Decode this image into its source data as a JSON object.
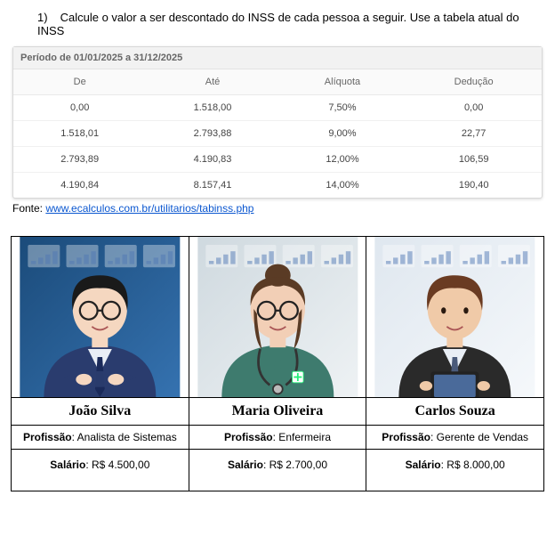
{
  "question": {
    "number": "1)",
    "text": "Calcule o valor a ser descontado do INSS de cada pessoa a seguir. Use a tabela atual do INSS"
  },
  "inss_table": {
    "period": "Período de 01/01/2025 a 31/12/2025",
    "columns": [
      "De",
      "Até",
      "Alíquota",
      "Dedução"
    ],
    "rows": [
      [
        "0,00",
        "1.518,00",
        "7,50%",
        "0,00"
      ],
      [
        "1.518,01",
        "2.793,88",
        "9,00%",
        "22,77"
      ],
      [
        "2.793,89",
        "4.190,83",
        "12,00%",
        "106,59"
      ],
      [
        "4.190,84",
        "8.157,41",
        "14,00%",
        "190,40"
      ]
    ]
  },
  "source": {
    "prefix": "Fonte: ",
    "url_text": "www.ecalculos.com.br/utilitarios/tabinss.php"
  },
  "people_labels": {
    "profession": "Profissão",
    "salary": "Salário"
  },
  "people": [
    {
      "name": "João Silva",
      "profession": "Analista de Sistemas",
      "salary": "R$ 4.500,00",
      "avatar": {
        "bg1": "#1b4b7a",
        "bg2": "#3572b0",
        "skin": "#f5d7c0",
        "hair": "#1a1a1a",
        "shirt": "#e9eef5",
        "tie": "#1a2a5a",
        "sweater": "#2a3c6e",
        "glasses": true,
        "bun": false,
        "tablet": false,
        "cross_arms": true
      }
    },
    {
      "name": "Maria Oliveira",
      "profession": "Enfermeira",
      "salary": "R$ 2.700,00",
      "avatar": {
        "bg1": "#cfd9df",
        "bg2": "#eef2f4",
        "skin": "#f2cfb6",
        "hair": "#5a3b25",
        "shirt": "#3e7b6e",
        "tie": "#3e7b6e",
        "sweater": "#3e7b6e",
        "glasses": true,
        "bun": true,
        "tablet": false,
        "cross_arms": false,
        "stethoscope": true,
        "badge": true
      }
    },
    {
      "name": "Carlos Souza",
      "profession": "Gerente de Vendas",
      "salary": "R$ 8.000,00",
      "avatar": {
        "bg1": "#dfe7ef",
        "bg2": "#f5f8fb",
        "skin": "#f0caa8",
        "hair": "#6a3b22",
        "shirt": "#e9eef5",
        "tie": "#4a5a7a",
        "sweater": "#2a2a2a",
        "glasses": false,
        "bun": false,
        "tablet": true,
        "cross_arms": false
      }
    }
  ]
}
